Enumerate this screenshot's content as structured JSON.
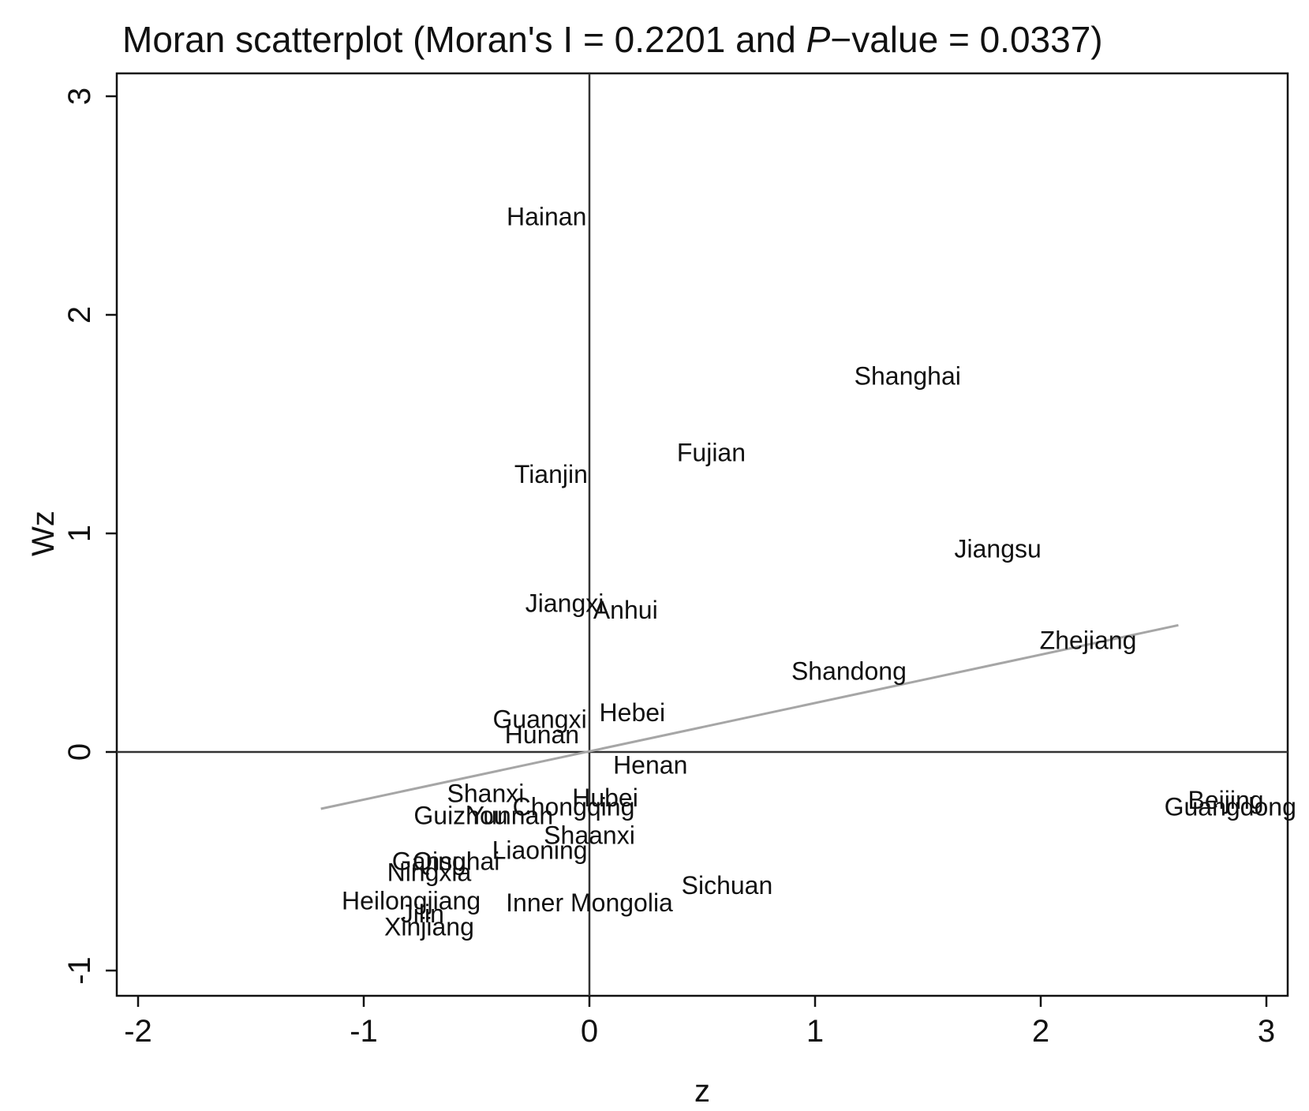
{
  "chart_data": {
    "type": "scatter",
    "title_prefix": "Moran scatterplot (Moran's I = 0.2201 and ",
    "title_p": "P",
    "title_suffix": "−value = 0.0337)",
    "xlabel": "z",
    "ylabel": "Wz",
    "xlim": [
      -2.1,
      3.1
    ],
    "ylim": [
      -1.12,
      3.12
    ],
    "xticks": [
      -2,
      -1,
      0,
      1,
      2,
      3
    ],
    "yticks": [
      -1,
      0,
      1,
      2,
      3
    ],
    "xtick_labels": [
      "-2",
      "-1",
      "0",
      "1",
      "2",
      "3"
    ],
    "ytick_labels": [
      "-1",
      "0",
      "1",
      "2",
      "3"
    ],
    "grid": false,
    "reference_lines": {
      "x": 0,
      "y": 0
    },
    "fit_line": {
      "x": [
        -1.19,
        2.61
      ],
      "y": [
        -0.26,
        0.58
      ],
      "color": "#a6a6a6"
    },
    "points": [
      {
        "label": "Hainan",
        "x": -0.19,
        "y": 2.45
      },
      {
        "label": "Shanghai",
        "x": 1.41,
        "y": 1.72
      },
      {
        "label": "Fujian",
        "x": 0.54,
        "y": 1.37
      },
      {
        "label": "Tianjin",
        "x": -0.17,
        "y": 1.27
      },
      {
        "label": "Jiangsu",
        "x": 1.81,
        "y": 0.93
      },
      {
        "label": "Jiangxi",
        "x": -0.11,
        "y": 0.68
      },
      {
        "label": "Anhui",
        "x": 0.16,
        "y": 0.65
      },
      {
        "label": "Zhejiang",
        "x": 2.21,
        "y": 0.51
      },
      {
        "label": "Shandong",
        "x": 1.15,
        "y": 0.37
      },
      {
        "label": "Hebei",
        "x": 0.19,
        "y": 0.18
      },
      {
        "label": "Guangxi",
        "x": -0.22,
        "y": 0.15
      },
      {
        "label": "Hunan",
        "x": -0.21,
        "y": 0.08
      },
      {
        "label": "Henan",
        "x": 0.27,
        "y": -0.06
      },
      {
        "label": "Shanxi",
        "x": -0.46,
        "y": -0.19
      },
      {
        "label": "Hubei",
        "x": 0.07,
        "y": -0.21
      },
      {
        "label": "Chongqing",
        "x": -0.07,
        "y": -0.25
      },
      {
        "label": "Guizhou",
        "x": -0.57,
        "y": -0.29
      },
      {
        "label": "Yunnan",
        "x": -0.35,
        "y": -0.29
      },
      {
        "label": "Beijing",
        "x": 2.82,
        "y": -0.22
      },
      {
        "label": "Guangdong",
        "x": 2.84,
        "y": -0.25
      },
      {
        "label": "Shaanxi",
        "x": 0.0,
        "y": -0.38
      },
      {
        "label": "Liaoning",
        "x": -0.22,
        "y": -0.45
      },
      {
        "label": "Qinghai",
        "x": -0.59,
        "y": -0.5
      },
      {
        "label": "Gansu",
        "x": -0.71,
        "y": -0.5
      },
      {
        "label": "Ningxia",
        "x": -0.71,
        "y": -0.55
      },
      {
        "label": "Sichuan",
        "x": 0.61,
        "y": -0.61
      },
      {
        "label": "Heilongjiang",
        "x": -0.79,
        "y": -0.68
      },
      {
        "label": "Inner Mongolia",
        "x": -0.0,
        "y": -0.69
      },
      {
        "label": "Jilin",
        "x": -0.74,
        "y": -0.74
      },
      {
        "label": "Xinjiang",
        "x": -0.71,
        "y": -0.8
      }
    ]
  }
}
